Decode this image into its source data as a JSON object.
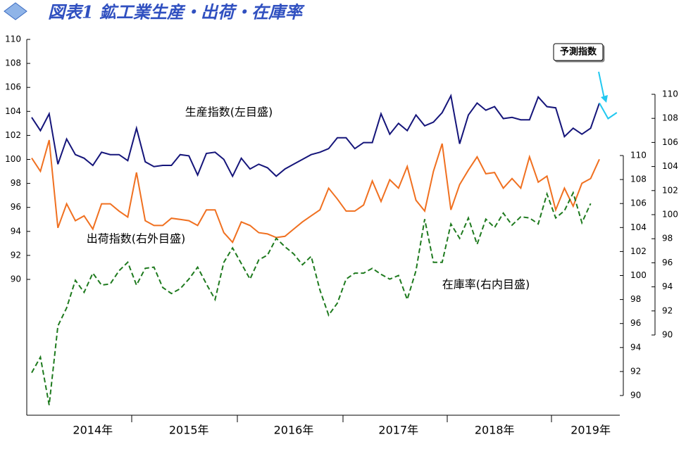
{
  "chart_data": {
    "type": "line",
    "title": "図表1 鉱工業生産・出荷・在庫率",
    "categories": [
      null,
      null,
      null,
      null,
      null,
      null,
      null,
      "2014年",
      null,
      null,
      null,
      null,
      null,
      null,
      null,
      null,
      null,
      null,
      "2015年",
      null,
      null,
      null,
      null,
      null,
      null,
      null,
      null,
      null,
      null,
      null,
      "2016年",
      null,
      null,
      null,
      null,
      null,
      null,
      null,
      null,
      null,
      null,
      null,
      "2017年",
      null,
      null,
      null,
      null,
      null,
      null,
      null,
      null,
      null,
      null,
      "2018年",
      null,
      null,
      null,
      null,
      null,
      null,
      null,
      null,
      null,
      null,
      "2019年",
      null,
      null,
      null
    ],
    "ylim": [
      90,
      110
    ],
    "yticks": [
      90,
      92,
      94,
      96,
      98,
      100,
      102,
      104,
      106,
      108,
      110
    ],
    "y2lim": [
      90,
      110
    ],
    "y2ticks": [
      90,
      92,
      94,
      96,
      98,
      100,
      102,
      104,
      106,
      108,
      110
    ],
    "y3lim": [
      90,
      110
    ],
    "y3ticks": [
      90,
      92,
      94,
      96,
      98,
      100,
      102,
      104,
      106,
      108,
      110
    ],
    "series": [
      {
        "name": "生産指数(左目盛)",
        "color": "#15157a",
        "axis": "y",
        "style": "solid",
        "values": [
          103.5,
          102.4,
          103.8,
          99.6,
          101.7,
          100.4,
          100.1,
          99.5,
          100.6,
          100.4,
          100.4,
          99.9,
          102.6,
          99.8,
          99.4,
          99.5,
          99.5,
          100.4,
          100.3,
          98.7,
          100.5,
          100.6,
          100.0,
          98.6,
          100.1,
          99.2,
          99.6,
          99.3,
          98.6,
          99.2,
          99.6,
          100.0,
          100.4,
          100.6,
          100.9,
          101.8,
          101.8,
          100.9,
          101.4,
          101.4,
          103.8,
          102.1,
          103.0,
          102.4,
          103.7,
          102.8,
          103.1,
          103.9,
          105.3,
          101.3,
          103.7,
          104.7,
          104.1,
          104.4,
          103.4,
          103.5,
          103.3,
          103.3,
          105.2,
          104.4,
          104.3,
          101.9,
          102.6,
          102.1,
          102.6,
          104.7,
          null,
          null
        ]
      },
      {
        "name": "予測指数",
        "color": "#22c8f0",
        "axis": "y",
        "style": "solid",
        "values": [
          null,
          null,
          null,
          null,
          null,
          null,
          null,
          null,
          null,
          null,
          null,
          null,
          null,
          null,
          null,
          null,
          null,
          null,
          null,
          null,
          null,
          null,
          null,
          null,
          null,
          null,
          null,
          null,
          null,
          null,
          null,
          null,
          null,
          null,
          null,
          null,
          null,
          null,
          null,
          null,
          null,
          null,
          null,
          null,
          null,
          null,
          null,
          null,
          null,
          null,
          null,
          null,
          null,
          null,
          null,
          null,
          null,
          null,
          null,
          null,
          null,
          null,
          null,
          null,
          null,
          104.7,
          103.4,
          103.9
        ]
      },
      {
        "name": "出荷指数(右外目盛)",
        "color": "#f07020",
        "axis": "y2",
        "style": "solid",
        "values": [
          104.7,
          103.6,
          106.2,
          98.9,
          100.9,
          99.5,
          99.9,
          98.8,
          100.9,
          100.9,
          100.3,
          99.8,
          103.5,
          99.5,
          99.1,
          99.1,
          99.7,
          99.6,
          99.5,
          99.1,
          100.4,
          100.4,
          98.5,
          97.7,
          99.4,
          99.1,
          98.5,
          98.4,
          98.1,
          98.2,
          98.8,
          99.4,
          99.9,
          100.4,
          102.2,
          101.3,
          100.3,
          100.3,
          100.8,
          102.8,
          101.1,
          102.9,
          102.2,
          104.0,
          101.2,
          100.3,
          103.6,
          105.9,
          100.4,
          102.5,
          103.7,
          104.8,
          103.4,
          103.5,
          102.2,
          103.0,
          102.2,
          104.8,
          102.7,
          103.2,
          100.4,
          102.2,
          100.7,
          102.6,
          103.0,
          104.6,
          null,
          null
        ]
      },
      {
        "name": "在庫率(右内目盛)",
        "color": "#1e7a1e",
        "axis": "y3",
        "style": "dashed",
        "values": [
          91.9,
          93.2,
          89.2,
          95.8,
          97.3,
          99.6,
          98.6,
          100.2,
          99.2,
          99.3,
          100.4,
          101.1,
          99.2,
          100.6,
          100.7,
          99.0,
          98.5,
          98.9,
          99.7,
          100.7,
          99.3,
          98.0,
          101.1,
          102.3,
          101.0,
          99.7,
          101.3,
          101.7,
          103.1,
          102.4,
          101.8,
          100.9,
          101.6,
          98.8,
          96.7,
          97.7,
          99.7,
          100.2,
          100.2,
          100.6,
          100.1,
          99.7,
          100.0,
          98.0,
          100.4,
          104.7,
          101.1,
          101.1,
          104.3,
          103.1,
          104.8,
          102.6,
          104.7,
          104.0,
          105.2,
          104.2,
          104.9,
          104.8,
          104.3,
          106.8,
          104.8,
          105.4,
          106.9,
          104.4,
          106.0,
          null,
          null,
          null
        ]
      }
    ]
  }
}
